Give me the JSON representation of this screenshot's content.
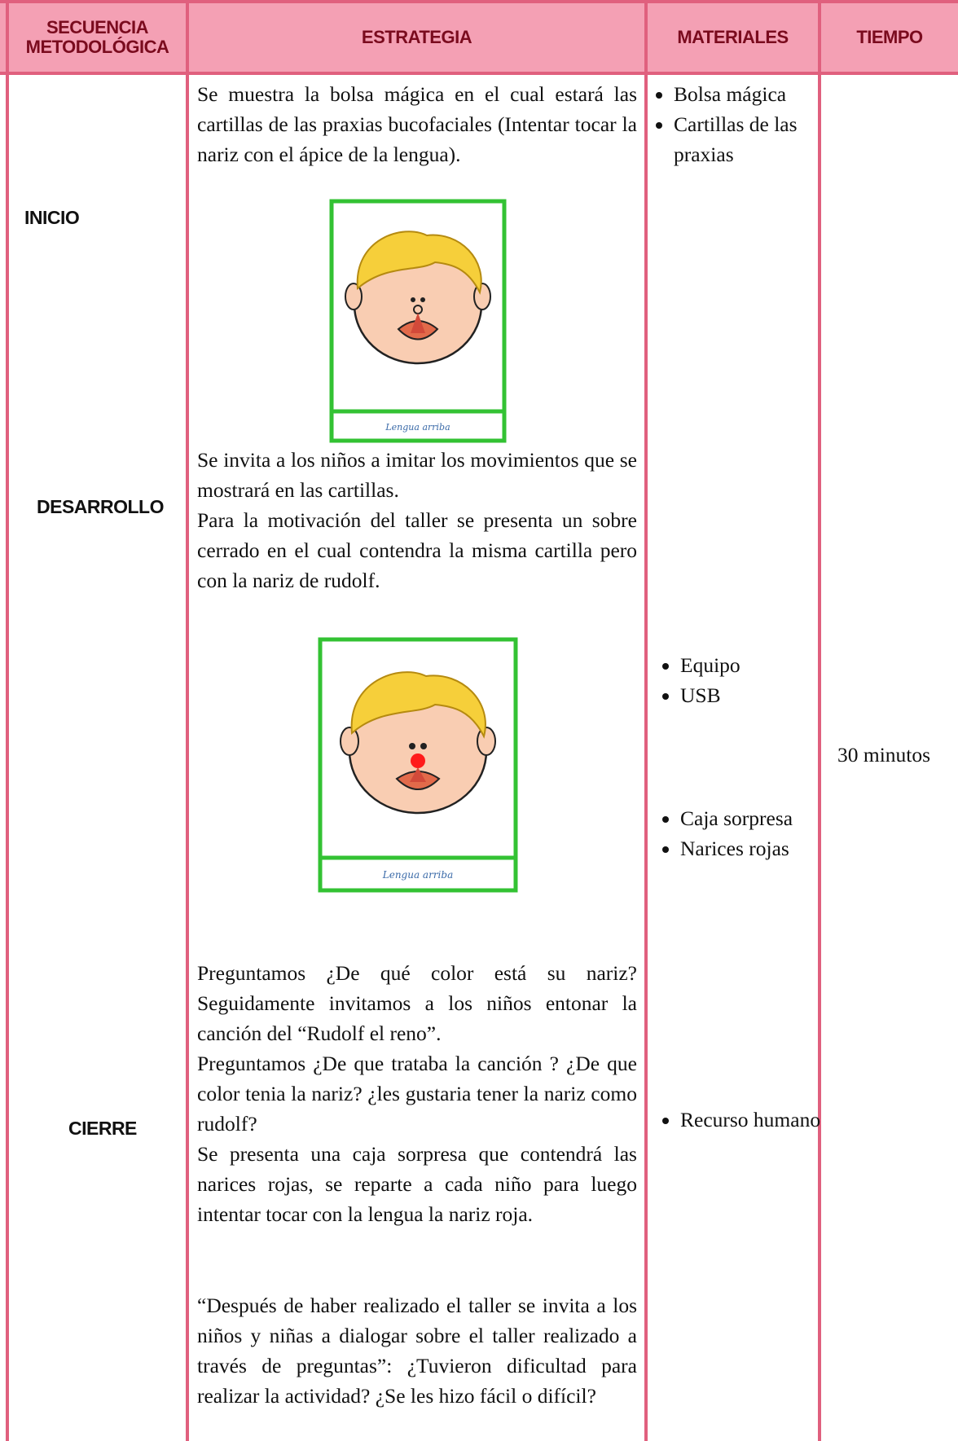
{
  "headers": [
    "SECUENCIA METODOLÓGICA",
    "ESTRATEGIA",
    "MATERIALES",
    "TIEMPO"
  ],
  "stages": [
    "INICIO",
    "DESARROLLO",
    "CIERRE"
  ],
  "strategy": {
    "block_1": [
      "Se muestra la bolsa mágica en el cual estará las cartillas de las praxias bucofaciales (Intentar tocar la nariz con el ápice de la lengua)."
    ],
    "card_1_caption": "Lengua arriba",
    "block_2": [
      "Se invita a los niños a imitar los movimientos que se mostrará en las cartillas.",
      "Para la motivación del taller se presenta un sobre cerrado en el cual contendra la misma cartilla pero con la nariz de rudolf."
    ],
    "card_2_caption": "Lengua arriba",
    "block_3": [
      "Preguntamos ¿De qué color está su nariz? Seguidamente invitamos a los niños entonar la canción del “Rudolf el reno”.",
      "Preguntamos ¿De que trataba la canción ? ¿De que color tenia la nariz? ¿les gustaria tener la nariz como rudolf?",
      " Se presenta una caja sorpresa que contendrá las narices rojas, se reparte a cada niño para luego intentar tocar con la lengua la nariz roja."
    ],
    "block_4": [
      "“Después de haber realizado el taller se invita a los niños y niñas a dialogar sobre el taller realizado a través de preguntas”: ¿Tuvieron dificultad para realizar la actividad? ¿Se les hizo fácil o difícil?"
    ]
  },
  "materials": [
    [
      "Bolsa mágica",
      "Cartillas de las praxias"
    ],
    [
      "Equipo",
      "USB"
    ],
    [
      "Caja sorpresa",
      "Narices rojas"
    ],
    [
      "Recurso humano"
    ]
  ],
  "time": "30 minutos"
}
